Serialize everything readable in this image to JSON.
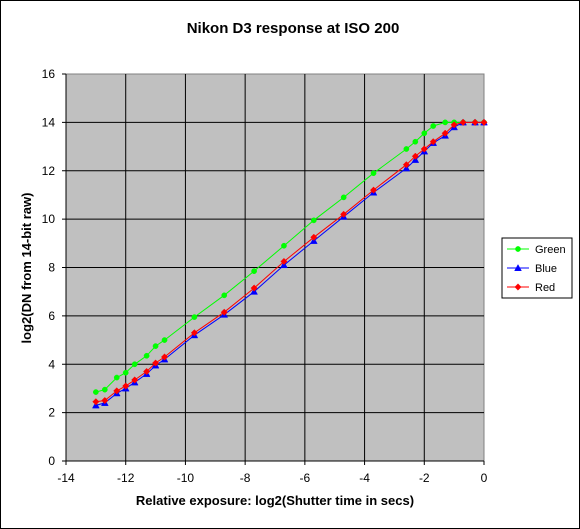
{
  "chart_data": {
    "type": "line",
    "title": "Nikon D3 response at ISO 200",
    "xlabel": "Relative exposure: log2(Shutter time in secs)",
    "ylabel": "log2(DN from 14-bit raw)",
    "xlim": [
      -14,
      0
    ],
    "ylim": [
      0,
      16
    ],
    "xticks": [
      -14,
      -12,
      -10,
      -8,
      -6,
      -4,
      -2,
      0
    ],
    "yticks": [
      0,
      2,
      4,
      6,
      8,
      10,
      12,
      14,
      16
    ],
    "xtick_labels": [
      "-14",
      "-12",
      "-10",
      "-8",
      "-6",
      "-4",
      "-2",
      "0"
    ],
    "ytick_labels": [
      "0",
      "2",
      "4",
      "6",
      "8",
      "10",
      "12",
      "14",
      "16"
    ],
    "grid": true,
    "plot_background": "#c0c0c0",
    "legend_position": "right",
    "series": [
      {
        "name": "Green",
        "color": "#00ff00",
        "marker": "circle",
        "x": [
          -13.0,
          -12.7,
          -12.3,
          -12.0,
          -11.7,
          -11.3,
          -11.0,
          -10.7,
          -9.7,
          -8.7,
          -7.7,
          -6.7,
          -5.7,
          -4.7,
          -3.7,
          -2.6,
          -2.3,
          -2.0,
          -1.7,
          -1.3,
          -1.0,
          -0.7,
          -0.3,
          0.0
        ],
        "y": [
          2.85,
          2.95,
          3.45,
          3.65,
          4.0,
          4.35,
          4.75,
          5.0,
          5.95,
          6.85,
          7.85,
          8.9,
          9.95,
          10.9,
          11.9,
          12.9,
          13.2,
          13.55,
          13.85,
          14.0,
          14.0,
          14.0,
          14.0,
          14.0
        ]
      },
      {
        "name": "Blue",
        "color": "#0000ff",
        "marker": "triangle",
        "x": [
          -13.0,
          -12.7,
          -12.3,
          -12.0,
          -11.7,
          -11.3,
          -11.0,
          -10.7,
          -9.7,
          -8.7,
          -7.7,
          -6.7,
          -5.7,
          -4.7,
          -3.7,
          -2.6,
          -2.3,
          -2.0,
          -1.7,
          -1.3,
          -1.0,
          -0.7,
          -0.3,
          0.0
        ],
        "y": [
          2.3,
          2.4,
          2.8,
          3.0,
          3.25,
          3.6,
          3.95,
          4.2,
          5.2,
          6.05,
          7.0,
          8.1,
          9.1,
          10.1,
          11.1,
          12.1,
          12.45,
          12.8,
          13.15,
          13.45,
          13.8,
          14.0,
          14.0,
          14.0
        ]
      },
      {
        "name": "Red",
        "color": "#ff0000",
        "marker": "diamond",
        "x": [
          -13.0,
          -12.7,
          -12.3,
          -12.0,
          -11.7,
          -11.3,
          -11.0,
          -10.7,
          -9.7,
          -8.7,
          -7.7,
          -6.7,
          -5.7,
          -4.7,
          -3.7,
          -2.6,
          -2.3,
          -2.0,
          -1.7,
          -1.3,
          -1.0,
          -0.7,
          -0.3,
          0.0
        ],
        "y": [
          2.45,
          2.5,
          2.9,
          3.1,
          3.35,
          3.7,
          4.05,
          4.3,
          5.3,
          6.15,
          7.15,
          8.25,
          9.25,
          10.2,
          11.2,
          12.25,
          12.6,
          12.9,
          13.2,
          13.55,
          13.9,
          14.0,
          14.0,
          14.0
        ]
      }
    ]
  }
}
